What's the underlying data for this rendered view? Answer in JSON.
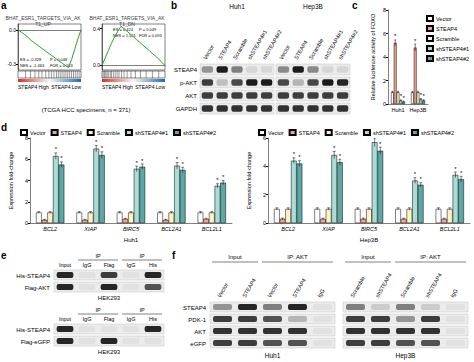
{
  "panel_labels": [
    "a",
    "b",
    "c",
    "d",
    "e",
    "f"
  ],
  "chart_data": [
    {
      "type": "line",
      "title": "BHAT_ESR1_TARGETS_VIA_AKT1_UP",
      "x": [
        0,
        5,
        10,
        15,
        20,
        25,
        30,
        35,
        40,
        45,
        50,
        55,
        60,
        65,
        70,
        75,
        80,
        85,
        90,
        95,
        100
      ],
      "values": [
        0,
        -0.02,
        -0.04,
        -0.06,
        -0.09,
        -0.11,
        -0.13,
        -0.15,
        -0.17,
        -0.19,
        -0.21,
        -0.23,
        -0.25,
        -0.27,
        -0.29,
        -0.31,
        -0.328,
        -0.26,
        -0.17,
        -0.08,
        0
      ],
      "hits": [
        12,
        20,
        27,
        33,
        38,
        44,
        49,
        53,
        57,
        61,
        64,
        67,
        70,
        73,
        76,
        79,
        82,
        85,
        88,
        91,
        94,
        97
      ],
      "xlim": [
        0,
        100
      ],
      "ylim": [
        -0.35,
        0.05
      ],
      "yticks": [
        {
          "value": -0.3,
          "label": "-0.3"
        },
        {
          "value": 0,
          "label": "0.0"
        }
      ],
      "tick_labels": "y",
      "color": "#2ca02c",
      "annotations": [
        "ES = -0.328",
        "P = 0.048",
        "NES = -1.463",
        "FDR = 0.163",
        "STEAP4 High",
        "STEAP4 Low"
      ]
    },
    {
      "type": "line",
      "title": "BHAT_ESR1_TARGETS_VIA_AKT1_DN",
      "x": [
        0,
        5,
        10,
        15,
        20,
        25,
        30,
        35,
        40,
        45,
        50,
        55,
        60,
        65,
        70,
        75,
        80,
        85,
        90,
        95,
        100
      ],
      "values": [
        0,
        0.08,
        0.16,
        0.24,
        0.31,
        0.37,
        0.424,
        0.4,
        0.37,
        0.34,
        0.31,
        0.28,
        0.25,
        0.22,
        0.19,
        0.16,
        0.13,
        0.1,
        0.07,
        0.03,
        0
      ],
      "hits": [
        2,
        4,
        6,
        8,
        10,
        13,
        15,
        18,
        21,
        24,
        27,
        31,
        35,
        40,
        46,
        53,
        61,
        70,
        80,
        90
      ],
      "xlim": [
        0,
        100
      ],
      "ylim": [
        -0.05,
        0.45
      ],
      "yticks": [
        {
          "value": 0,
          "label": "0.0"
        },
        {
          "value": 0.4,
          "label": "0.4"
        }
      ],
      "tick_labels": "y",
      "color": "#2ca02c",
      "annotations": [
        "ES = 0.424",
        "P = 0.049",
        "NES = 1.521",
        "FDR = 0.093",
        "STEAP4 High",
        "STEAP4 Low"
      ]
    },
    {
      "type": "bar",
      "ylabel": "Relative luciferase activity of FOXO",
      "categories": [
        "Huh1",
        "Hep3B"
      ],
      "series": [
        {
          "name": "Vector",
          "color": "#ffffff",
          "values": [
            1,
            1
          ],
          "errors": [
            0.08,
            0.08
          ],
          "significance": [
            null,
            null
          ]
        },
        {
          "name": "STEAP4",
          "color": "#f4a48e",
          "values": [
            5.2,
            4.8
          ],
          "errors": [
            0.25,
            0.3
          ],
          "significance": [
            "*",
            "*"
          ]
        },
        {
          "name": "Scramble",
          "color": "#fff3c4",
          "values": [
            1,
            1
          ],
          "errors": [
            0.08,
            0.08
          ],
          "significance": [
            null,
            null
          ]
        },
        {
          "name": "shSTEAP4#1",
          "color": "#a9ddd6",
          "values": [
            0.3,
            0.4
          ],
          "errors": [
            0.05,
            0.06
          ],
          "significance": [
            "*",
            "*"
          ]
        },
        {
          "name": "shSTEAP4#2",
          "color": "#5ba8a6",
          "values": [
            0.2,
            0.3
          ],
          "errors": [
            0.04,
            0.05
          ],
          "significance": [
            "*",
            "*"
          ]
        }
      ],
      "ylim": [
        0,
        8
      ],
      "yticks": [
        0,
        2,
        4,
        6,
        8
      ],
      "legend": "right"
    },
    {
      "type": "bar",
      "xlabel": "Huh1",
      "ylabel": "Expression fold-change",
      "categories": [
        "BCL2",
        "XIAP",
        "BIRC5",
        "BCL2A1",
        "BCL2L1"
      ],
      "series": [
        {
          "name": "Vector",
          "color": "#ffffff",
          "values": [
            1,
            1,
            1,
            1,
            1
          ],
          "errors": [
            0.08,
            0.08,
            0.08,
            0.08,
            0.08
          ],
          "significance": [
            null,
            null,
            null,
            null,
            null
          ]
        },
        {
          "name": "STEAP4",
          "color": "#f4a48e",
          "values": [
            0.3,
            0.3,
            0.4,
            0.3,
            0.4
          ],
          "errors": [
            0.05,
            0.05,
            0.05,
            0.05,
            0.05
          ],
          "significance": [
            null,
            null,
            null,
            null,
            null
          ]
        },
        {
          "name": "Scramble",
          "color": "#fff3c4",
          "values": [
            1,
            1,
            1,
            1,
            1
          ],
          "errors": [
            0.08,
            0.08,
            0.08,
            0.08,
            0.08
          ],
          "significance": [
            null,
            null,
            null,
            null,
            null
          ]
        },
        {
          "name": "shSTEAP4#1",
          "color": "#a9ddd6",
          "values": [
            6.3,
            7.0,
            5.1,
            5.4,
            3.5
          ],
          "errors": [
            0.3,
            0.3,
            0.25,
            0.3,
            0.2
          ],
          "significance": [
            "*",
            "*",
            "*",
            "*",
            "*"
          ]
        },
        {
          "name": "shSTEAP4#2",
          "color": "#5ba8a6",
          "values": [
            5.5,
            6.4,
            5.3,
            5.0,
            3.8
          ],
          "errors": [
            0.25,
            0.3,
            0.25,
            0.25,
            0.2
          ],
          "significance": [
            "*",
            "*",
            "*",
            "*",
            "*"
          ]
        }
      ],
      "ylim": [
        0,
        8
      ],
      "yticks": [
        0,
        2,
        4,
        6,
        8
      ],
      "legend": "top"
    },
    {
      "type": "bar",
      "xlabel": "Hep3B",
      "ylabel": "Expression fold-change",
      "categories": [
        "BCL2",
        "XIAP",
        "BIRC5",
        "BCL2A1",
        "BCL2L1"
      ],
      "series": [
        {
          "name": "Vector",
          "color": "#ffffff",
          "values": [
            1,
            1,
            1,
            1,
            1
          ],
          "errors": [
            0.08,
            0.08,
            0.08,
            0.08,
            0.08
          ],
          "significance": [
            null,
            null,
            null,
            null,
            null
          ]
        },
        {
          "name": "STEAP4",
          "color": "#f4a48e",
          "values": [
            0.3,
            0.3,
            0.3,
            0.3,
            0.3
          ],
          "errors": [
            0.05,
            0.05,
            0.05,
            0.05,
            0.05
          ],
          "significance": [
            null,
            null,
            null,
            null,
            null
          ]
        },
        {
          "name": "Scramble",
          "color": "#fff3c4",
          "values": [
            1,
            1,
            1,
            1,
            1
          ],
          "errors": [
            0.08,
            0.08,
            0.08,
            0.08,
            0.08
          ],
          "significance": [
            null,
            null,
            null,
            null,
            null
          ]
        },
        {
          "name": "shSTEAP4#1",
          "color": "#a9ddd6",
          "values": [
            4.4,
            4.8,
            5.7,
            3.0,
            3.4
          ],
          "errors": [
            0.2,
            0.25,
            0.3,
            0.2,
            0.2
          ],
          "significance": [
            "*",
            "*",
            "*",
            "*",
            "*"
          ]
        },
        {
          "name": "shSTEAP4#2",
          "color": "#5ba8a6",
          "values": [
            4.2,
            4.3,
            5.1,
            2.7,
            3.1
          ],
          "errors": [
            0.2,
            0.2,
            0.25,
            0.15,
            0.2
          ],
          "significance": [
            "*",
            "*",
            "*",
            "*",
            "*"
          ]
        }
      ],
      "ylim": [
        0,
        6
      ],
      "yticks": [
        0,
        2,
        4,
        6
      ],
      "legend": "top"
    }
  ],
  "footnote": "(TCGA HCC specimens, n = 371)",
  "blots": {
    "b": {
      "row_names": [
        "STEAP4",
        "p-AKT",
        "AKT",
        "GAPDH"
      ],
      "groups": [
        {
          "label": "Huh1",
          "lanes": [
            "Vector",
            "STEAP4",
            "Scramble",
            "shSTEAP4#1",
            "shSTEAP4#2"
          ],
          "intensity": [
            [
              0.4,
              0.95,
              0.5,
              0.1,
              0.1
            ],
            [
              0.8,
              0.2,
              0.75,
              0.95,
              0.95
            ],
            [
              0.8,
              0.8,
              0.8,
              0.8,
              0.8
            ],
            [
              0.85,
              0.85,
              0.85,
              0.85,
              0.85
            ]
          ]
        },
        {
          "label": "Hep3B",
          "lanes": [
            "Vector",
            "STEAP4",
            "Scramble",
            "shSTEAP4#1",
            "shSTEAP4#2"
          ],
          "intensity": [
            [
              0.45,
              0.95,
              0.45,
              0.1,
              0.1
            ],
            [
              0.75,
              0.25,
              0.75,
              0.95,
              0.9
            ],
            [
              0.8,
              0.8,
              0.8,
              0.8,
              0.8
            ],
            [
              0.85,
              0.85,
              0.85,
              0.85,
              0.85
            ]
          ]
        }
      ]
    },
    "e": [
      {
        "cell_line": "HEK293",
        "lanes": [
          "Input",
          "IgG",
          "Flag",
          "IgG",
          "His"
        ],
        "brackets": [
          {
            "label": "IP",
            "lanes": [
              1,
              2
            ]
          },
          {
            "label": "IP",
            "lanes": [
              3,
              4
            ]
          }
        ],
        "row_names": [
          "His-STEAP4",
          "Flag-AKT"
        ],
        "intensity": [
          [
            0.9,
            0.05,
            0.8,
            0.05,
            0.9
          ],
          [
            0.9,
            0.05,
            0.9,
            0.05,
            0.7
          ]
        ]
      },
      {
        "cell_line": "HEK293",
        "lanes": [
          "Input",
          "IgG",
          "Flag",
          "IgG",
          "His"
        ],
        "brackets": [
          {
            "label": "IP",
            "lanes": [
              1,
              2
            ]
          },
          {
            "label": "IP",
            "lanes": [
              3,
              4
            ]
          }
        ],
        "row_names": [
          "His-STEAP4",
          "Flag-eGFP"
        ],
        "intensity": [
          [
            0.9,
            0.05,
            0.05,
            0.05,
            0.9
          ],
          [
            0.9,
            0.05,
            0.9,
            0.05,
            0.05
          ]
        ]
      }
    ],
    "f": {
      "row_names": [
        "STEAP4",
        "PDK-1",
        "AKT",
        "eGFP"
      ],
      "groups": [
        {
          "label": "Huh1",
          "lanes": [
            "Vector",
            "STEAP4",
            "Vector",
            "STEAP4",
            "IgG"
          ],
          "brackets": [
            {
              "label": "Input",
              "lanes": [
                0,
                1
              ]
            },
            {
              "label": "IP: AKT",
              "lanes": [
                2,
                4
              ]
            }
          ],
          "intensity": [
            [
              0.4,
              0.9,
              0.5,
              0.9,
              0.05
            ],
            [
              0.8,
              0.8,
              0.7,
              0.25,
              0.05
            ],
            [
              0.85,
              0.85,
              0.85,
              0.85,
              0.05
            ],
            [
              0.8,
              0.8,
              0.7,
              0.7,
              0.05
            ]
          ]
        },
        {
          "label": "Hep3B",
          "lanes": [
            "Scramble",
            "shSTEAP4",
            "Scramble",
            "shSTEAP4",
            "IgG"
          ],
          "brackets": [
            {
              "label": "Input",
              "lanes": [
                0,
                1
              ]
            },
            {
              "label": "IP: AKT",
              "lanes": [
                2,
                4
              ]
            }
          ],
          "intensity": [
            [
              0.5,
              0.15,
              0.5,
              0.15,
              0.05
            ],
            [
              0.8,
              0.8,
              0.4,
              0.8,
              0.05
            ],
            [
              0.85,
              0.85,
              0.85,
              0.85,
              0.05
            ],
            [
              0.8,
              0.8,
              0.7,
              0.7,
              0.05
            ]
          ]
        }
      ]
    }
  }
}
